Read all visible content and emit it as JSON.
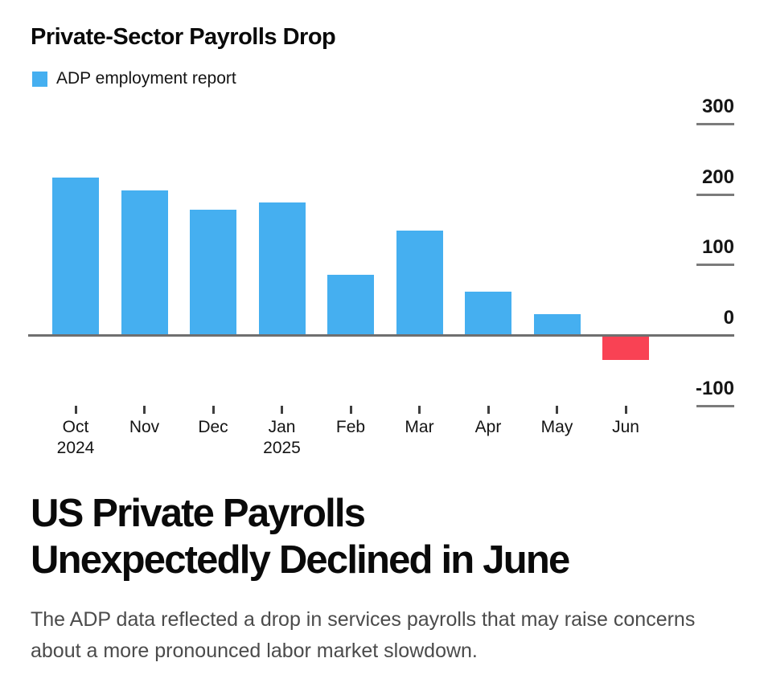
{
  "chart": {
    "title": "Private-Sector Payrolls Drop",
    "legend": {
      "label": "ADP employment report"
    }
  },
  "chart_data": {
    "type": "bar",
    "categories": [
      "Oct",
      "Nov",
      "Dec",
      "Jan",
      "Feb",
      "Mar",
      "Apr",
      "May",
      "Jun"
    ],
    "year_labels": [
      "2024",
      "",
      "",
      "2025",
      "",
      "",
      "",
      "",
      ""
    ],
    "values": [
      222,
      204,
      177,
      187,
      84,
      147,
      60,
      29,
      -33
    ],
    "title": "Private-Sector Payrolls Drop",
    "xlabel": "",
    "ylabel": "",
    "ylim": [
      -100,
      300
    ],
    "yticks": [
      300,
      200,
      100,
      0,
      -100
    ],
    "legend_entries": [
      "ADP employment report"
    ],
    "legend_position": "top-left",
    "grid": "right-side tick dashes only",
    "axis_side": "right",
    "unit": "thousands of jobs",
    "colors": {
      "bar_positive": "#45aff0",
      "bar_negative": "#f94254",
      "zero_axis": "#6f6f6f",
      "ytick_dash": "#7b7b7b",
      "xtick": "#3f3f3f",
      "axis_label_text": "#141414"
    }
  },
  "headline": {
    "lines": [
      "US Private Payrolls",
      "Unexpectedly Declined in June"
    ]
  },
  "subhead": {
    "text": "The ADP data reflected a drop in services payrolls that may raise concerns about a more pronounced labor market slowdown."
  }
}
